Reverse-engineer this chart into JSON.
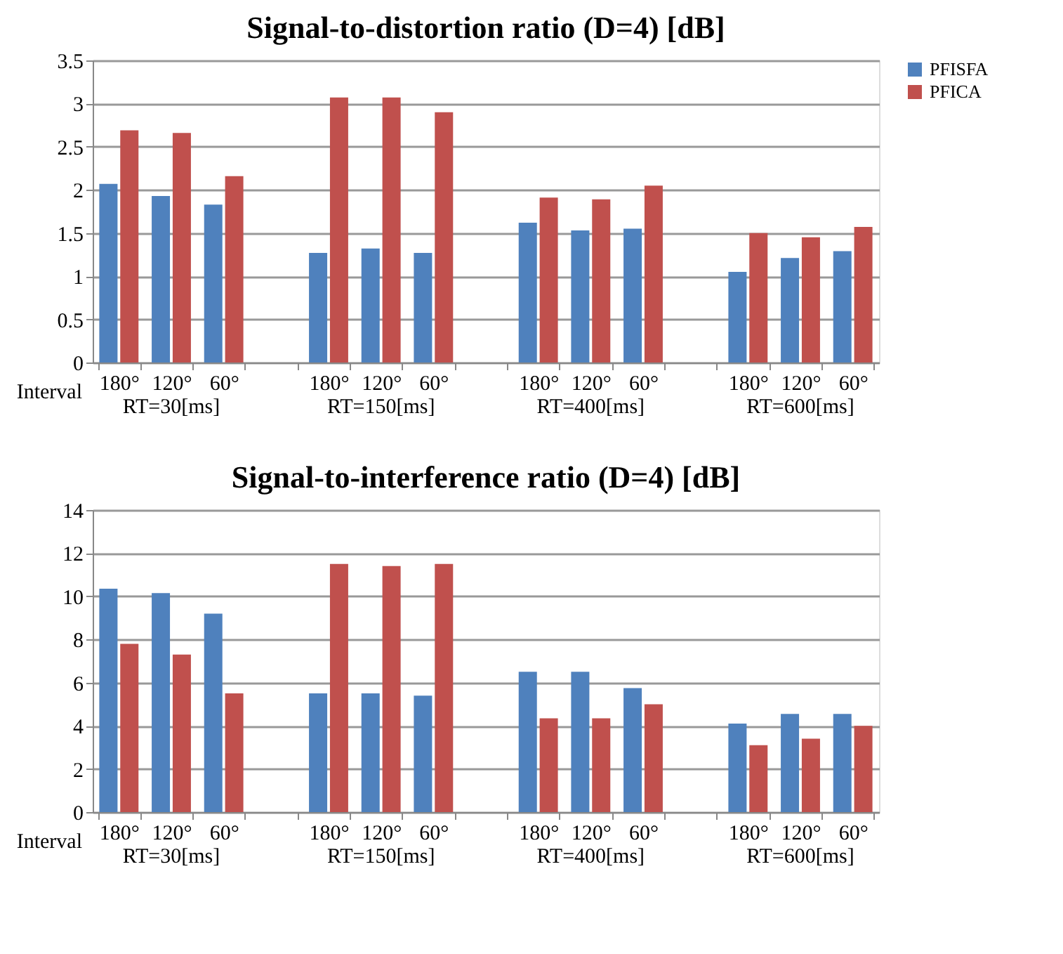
{
  "chart_data": [
    {
      "type": "bar",
      "title": "Signal-to-distortion ratio (D=4) [dB]",
      "xlabel": "Interval",
      "categories": [
        "180°",
        "120°",
        "60°",
        null,
        "180°",
        "120°",
        "60°",
        null,
        "180°",
        "120°",
        "60°",
        null,
        "180°",
        "120°",
        "60°"
      ],
      "series": [
        {
          "name": "PFISFA",
          "color": "#4f81bd",
          "values": [
            2.07,
            1.93,
            1.83,
            null,
            1.27,
            1.32,
            1.27,
            null,
            1.62,
            1.53,
            1.55,
            null,
            1.05,
            1.21,
            1.29
          ]
        },
        {
          "name": "PFICA",
          "color": "#c0504d",
          "values": [
            2.69,
            2.66,
            2.16,
            null,
            3.07,
            3.07,
            2.9,
            null,
            1.91,
            1.89,
            2.05,
            null,
            1.5,
            1.45,
            1.57
          ]
        }
      ],
      "annotations": [
        "RT=30[ms]",
        "RT=150[ms]",
        "RT=400[ms]",
        "RT=600[ms]"
      ],
      "ylim": [
        0,
        3.5
      ],
      "yticks": [
        0,
        0.5,
        1,
        1.5,
        2,
        2.5,
        3,
        3.5
      ],
      "grid": "y",
      "legend": "top right"
    },
    {
      "type": "bar",
      "title": "Signal-to-interference ratio (D=4) [dB]",
      "xlabel": "Interval",
      "categories": [
        "180°",
        "120°",
        "60°",
        null,
        "180°",
        "120°",
        "60°",
        null,
        "180°",
        "120°",
        "60°",
        null,
        "180°",
        "120°",
        "60°"
      ],
      "series": [
        {
          "name": "PFISFA",
          "color": "#4f81bd",
          "values": [
            10.35,
            10.15,
            9.2,
            null,
            5.5,
            5.5,
            5.4,
            null,
            6.5,
            6.5,
            5.75,
            null,
            4.1,
            4.55,
            4.55
          ]
        },
        {
          "name": "PFICA",
          "color": "#c0504d",
          "values": [
            7.8,
            7.3,
            5.5,
            null,
            11.5,
            11.4,
            11.5,
            null,
            4.35,
            4.35,
            5.0,
            null,
            3.1,
            3.4,
            4.0
          ]
        }
      ],
      "annotations": [
        "RT=30[ms]",
        "RT=150[ms]",
        "RT=400[ms]",
        "RT=600[ms]"
      ],
      "ylim": [
        0,
        14
      ],
      "yticks": [
        0,
        2,
        4,
        6,
        8,
        10,
        12,
        14
      ],
      "grid": "y",
      "legend": "top right"
    }
  ]
}
